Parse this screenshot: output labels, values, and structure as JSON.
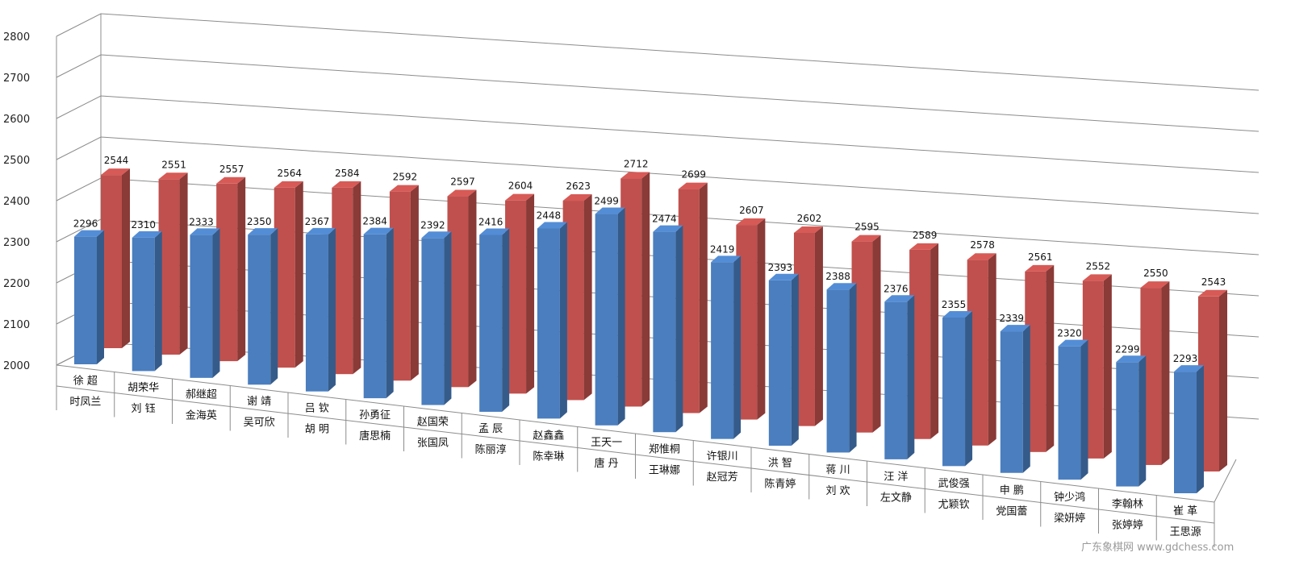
{
  "chart_data": {
    "type": "bar",
    "title": "",
    "xlabel": "",
    "ylabel": "",
    "ylim": [
      2000,
      2800
    ],
    "yticks": [
      2000,
      2100,
      2200,
      2300,
      2400,
      2500,
      2600,
      2700,
      2800
    ],
    "grid": true,
    "legend": "none",
    "categories": [
      [
        "徐 超",
        "时凤兰"
      ],
      [
        "胡荣华",
        "刘 钰"
      ],
      [
        "郝继超",
        "金海英"
      ],
      [
        "谢 靖",
        "吴可欣"
      ],
      [
        "吕 钦",
        "胡 明"
      ],
      [
        "孙勇征",
        "唐思楠"
      ],
      [
        "赵国荣",
        "张国凤"
      ],
      [
        "孟 辰",
        "陈丽淳"
      ],
      [
        "赵鑫鑫",
        "陈幸琳"
      ],
      [
        "王天一",
        "唐 丹"
      ],
      [
        "郑惟桐",
        "王琳娜"
      ],
      [
        "许银川",
        "赵冠芳"
      ],
      [
        "洪 智",
        "陈青婷"
      ],
      [
        "蒋 川",
        "刘 欢"
      ],
      [
        "汪 洋",
        "左文静"
      ],
      [
        "武俊强",
        "尤颖钦"
      ],
      [
        "申 鹏",
        "党国蕾"
      ],
      [
        "钟少鸿",
        "梁妍婷"
      ],
      [
        "李翰林",
        "张婷婷"
      ],
      [
        "崔 革",
        "王思源"
      ]
    ],
    "series": [
      {
        "color": "#4a7ebf",
        "values": [
          2296,
          2310,
          2333,
          2350,
          2367,
          2384,
          2392,
          2416,
          2448,
          2499,
          2474,
          2419,
          2393,
          2388,
          2376,
          2355,
          2339,
          2320,
          2299,
          2293
        ]
      },
      {
        "color": "#c0504d",
        "values": [
          2544,
          2551,
          2557,
          2564,
          2584,
          2592,
          2597,
          2604,
          2623,
          2712,
          2699,
          2607,
          2602,
          2595,
          2589,
          2578,
          2561,
          2552,
          2550,
          2543
        ]
      }
    ]
  },
  "watermark": "广东象棋网 www.gdchess.com"
}
